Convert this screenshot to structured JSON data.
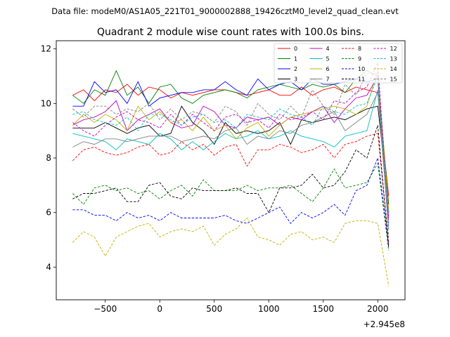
{
  "chart_data": {
    "type": "line",
    "suptitle": "Data file: modeM0/AS1A05_221T01_9000002888_19426cztM0_level2_quad_clean.evt",
    "title": "Quadrant 2 module wise count rates with 100.0s bins.",
    "xlabel": "",
    "ylabel": "",
    "x_offset_label": "+2.945e8",
    "xlim": [
      -950,
      2250
    ],
    "ylim": [
      2.8,
      12.3
    ],
    "x_ticks": [
      -500,
      0,
      500,
      1000,
      1500,
      2000
    ],
    "x_tick_labels": [
      "−500",
      "0",
      "500",
      "1000",
      "1500",
      "2000"
    ],
    "y_ticks": [
      4,
      6,
      8,
      10,
      12
    ],
    "y_tick_labels": [
      "4",
      "6",
      "8",
      "10",
      "12"
    ],
    "x": [
      -800,
      -700,
      -600,
      -500,
      -400,
      -300,
      -200,
      -100,
      0,
      100,
      200,
      300,
      400,
      500,
      600,
      700,
      800,
      900,
      1000,
      1100,
      1200,
      1300,
      1400,
      1500,
      1600,
      1700,
      1800,
      1900,
      2000,
      2100
    ],
    "series": [
      {
        "name": "0",
        "color": "#ff0000",
        "dash": "solid",
        "values": [
          10.3,
          10.5,
          10.1,
          10.5,
          10.4,
          10.7,
          10.3,
          10.6,
          10.5,
          10.2,
          10.4,
          10.3,
          10.4,
          10.5,
          10.5,
          10.4,
          10.3,
          10.4,
          10.5,
          10.3,
          10.3,
          10.6,
          10.3,
          10.5,
          10.6,
          10.4,
          10.6,
          10.5,
          10.4,
          6.6
        ]
      },
      {
        "name": "1",
        "color": "#008000",
        "dash": "solid",
        "values": [
          10.3,
          10.0,
          10.5,
          10.3,
          11.2,
          10.3,
          10.6,
          10.0,
          10.6,
          10.7,
          10.2,
          10.0,
          10.3,
          10.4,
          10.5,
          10.4,
          10.2,
          10.5,
          10.6,
          10.7,
          10.6,
          10.5,
          10.7,
          10.6,
          10.7,
          10.4,
          10.9,
          11.2,
          11.0,
          6.3
        ]
      },
      {
        "name": "2",
        "color": "#0000ff",
        "dash": "solid",
        "values": [
          9.9,
          9.9,
          10.8,
          10.4,
          10.5,
          10.0,
          10.8,
          9.9,
          10.2,
          10.3,
          10.4,
          10.4,
          10.5,
          10.5,
          10.8,
          10.5,
          10.3,
          10.9,
          10.5,
          10.7,
          10.8,
          10.5,
          10.9,
          10.7,
          10.7,
          10.8,
          10.9,
          10.8,
          10.9,
          6.0
        ]
      },
      {
        "name": "3",
        "color": "#000000",
        "dash": "solid",
        "values": [
          9.1,
          9.1,
          9.1,
          9.3,
          9.1,
          8.9,
          9.1,
          9.2,
          8.8,
          8.9,
          9.9,
          9.3,
          9.0,
          8.5,
          9.3,
          8.9,
          9.0,
          8.9,
          9.0,
          9.3,
          8.5,
          9.4,
          9.3,
          9.4,
          9.5,
          9.4,
          9.6,
          9.8,
          9.9,
          6.3
        ]
      },
      {
        "name": "4",
        "color": "#c000c0",
        "dash": "solid",
        "values": [
          9.2,
          9.4,
          9.5,
          9.7,
          10.1,
          9.0,
          9.4,
          9.6,
          9.8,
          9.3,
          9.1,
          9.2,
          9.9,
          9.7,
          9.2,
          9.1,
          9.5,
          9.4,
          9.5,
          9.2,
          9.5,
          9.4,
          9.7,
          9.9,
          9.3,
          9.8,
          10.2,
          10.3,
          11.0,
          5.8
        ]
      },
      {
        "name": "5",
        "color": "#00c0c0",
        "dash": "solid",
        "values": [
          8.9,
          8.8,
          8.7,
          8.6,
          8.3,
          8.7,
          8.6,
          8.5,
          8.9,
          8.7,
          8.3,
          8.6,
          8.3,
          8.6,
          8.9,
          8.7,
          8.8,
          9.0,
          8.7,
          8.8,
          9.0,
          8.8,
          8.7,
          8.6,
          8.4,
          8.8,
          8.9,
          9.0,
          10.5,
          6.0
        ]
      },
      {
        "name": "6",
        "color": "#c0b000",
        "dash": "solid",
        "values": [
          9.2,
          9.6,
          9.3,
          9.6,
          9.4,
          9.0,
          9.9,
          9.4,
          9.7,
          9.3,
          9.4,
          9.0,
          9.5,
          9.0,
          9.2,
          8.7,
          9.1,
          9.3,
          8.8,
          9.2,
          9.5,
          9.6,
          9.7,
          9.8,
          9.9,
          9.8,
          9.6,
          9.9,
          11.2,
          6.1
        ]
      },
      {
        "name": "7",
        "color": "#808080",
        "dash": "solid",
        "values": [
          8.4,
          8.6,
          8.5,
          8.7,
          8.7,
          8.6,
          8.7,
          8.8,
          8.8,
          8.8,
          8.6,
          8.7,
          8.8,
          8.7,
          9.0,
          9.1,
          8.5,
          8.8,
          8.7,
          9.0,
          8.9,
          9.2,
          9.3,
          9.5,
          9.7,
          9.0,
          9.3,
          9.6,
          10.4,
          5.4
        ]
      },
      {
        "name": "8",
        "color": "#ff0000",
        "dash": "dashed",
        "values": [
          7.9,
          8.3,
          8.4,
          8.2,
          8.1,
          8.2,
          8.4,
          8.5,
          8.1,
          8.2,
          8.6,
          8.3,
          8.5,
          8.1,
          8.4,
          8.5,
          7.7,
          8.3,
          8.3,
          8.5,
          8.4,
          8.2,
          8.3,
          8.5,
          8.0,
          8.5,
          8.6,
          8.8,
          8.9,
          4.9
        ]
      },
      {
        "name": "9",
        "color": "#008000",
        "dash": "dashed",
        "values": [
          6.7,
          6.3,
          6.9,
          7.0,
          6.8,
          6.9,
          6.7,
          6.8,
          6.5,
          6.8,
          7.0,
          6.6,
          7.2,
          6.8,
          6.8,
          6.8,
          7.0,
          6.8,
          6.9,
          6.9,
          7.0,
          6.7,
          6.4,
          6.9,
          7.6,
          6.9,
          7.0,
          7.1,
          7.8,
          4.6
        ]
      },
      {
        "name": "10",
        "color": "#0000ff",
        "dash": "dashed",
        "values": [
          6.1,
          6.1,
          5.9,
          5.9,
          5.7,
          6.0,
          5.8,
          5.9,
          5.7,
          6.0,
          5.8,
          5.8,
          5.8,
          5.8,
          5.9,
          5.7,
          5.6,
          5.8,
          6.0,
          6.2,
          5.6,
          6.0,
          5.8,
          6.0,
          6.3,
          5.9,
          6.8,
          7.0,
          8.0,
          4.8
        ]
      },
      {
        "name": "11",
        "color": "#000000",
        "dash": "dashed",
        "values": [
          6.5,
          6.7,
          6.7,
          6.8,
          6.9,
          6.4,
          6.4,
          7.0,
          7.1,
          6.6,
          6.5,
          6.9,
          6.8,
          6.8,
          6.8,
          6.9,
          6.7,
          6.7,
          6.0,
          6.9,
          6.9,
          7.0,
          7.4,
          6.9,
          7.0,
          7.5,
          8.3,
          8.0,
          9.2,
          4.7
        ]
      },
      {
        "name": "12",
        "color": "#c000c0",
        "dash": "dashed",
        "values": [
          9.3,
          9.0,
          8.8,
          9.2,
          9.5,
          9.7,
          9.4,
          9.3,
          9.1,
          9.6,
          9.2,
          9.6,
          9.3,
          9.0,
          9.5,
          9.6,
          9.3,
          9.4,
          9.1,
          9.6,
          9.4,
          9.5,
          9.7,
          9.4,
          10.1,
          10.0,
          10.4,
          10.6,
          11.5,
          5.6
        ]
      },
      {
        "name": "13",
        "color": "#00c0c0",
        "dash": "dashed",
        "values": [
          9.6,
          9.7,
          9.4,
          9.3,
          9.2,
          9.5,
          9.0,
          9.6,
          9.6,
          9.4,
          9.2,
          9.5,
          9.6,
          9.3,
          9.4,
          9.1,
          9.6,
          9.5,
          9.4,
          9.8,
          9.6,
          9.5,
          9.2,
          9.9,
          9.7,
          9.6,
          9.9,
          10.0,
          11.0,
          5.5
        ]
      },
      {
        "name": "14",
        "color": "#c0b000",
        "dash": "dashed",
        "values": [
          4.9,
          5.3,
          5.1,
          4.4,
          5.1,
          5.3,
          5.5,
          5.6,
          5.1,
          5.3,
          5.4,
          5.3,
          5.5,
          4.8,
          5.2,
          5.4,
          5.8,
          5.1,
          5.0,
          4.8,
          5.2,
          5.3,
          5.0,
          5.1,
          4.9,
          5.6,
          5.7,
          5.7,
          5.6,
          3.3
        ]
      },
      {
        "name": "15",
        "color": "#808080",
        "dash": "dashed",
        "values": [
          9.8,
          9.5,
          9.9,
          9.9,
          9.6,
          9.8,
          9.7,
          10.0,
          9.4,
          9.8,
          9.4,
          9.7,
          9.6,
          9.3,
          9.9,
          9.7,
          9.2,
          10.0,
          9.6,
          9.4,
          9.9,
          9.5,
          10.5,
          9.9,
          9.6,
          10.7,
          10.3,
          11.1,
          11.1,
          5.1
        ]
      }
    ],
    "legend_position": "top-right",
    "legend_columns": 4,
    "grid": false
  }
}
